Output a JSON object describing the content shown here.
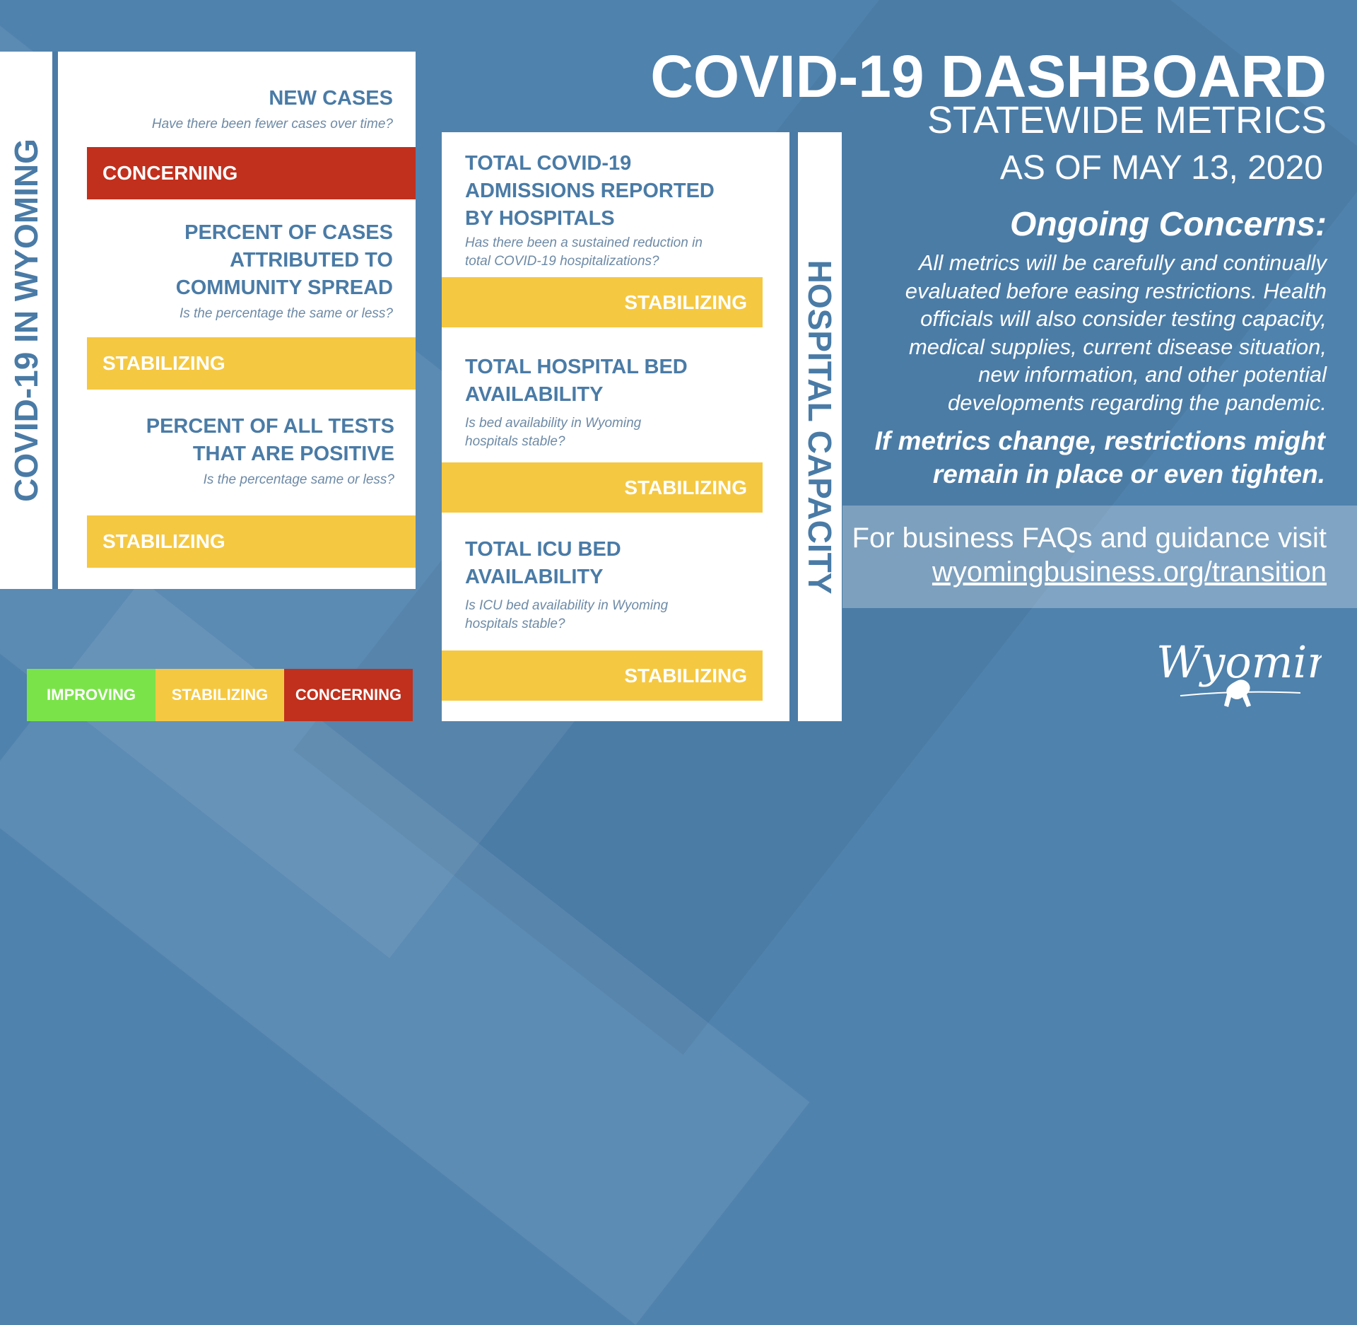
{
  "side_title_left": "COVID-19 IN WYOMING",
  "side_title_right": "HOSPITAL CAPACITY",
  "left_metrics": [
    {
      "title_lines": [
        "NEW CASES"
      ],
      "question": "Have there been fewer cases over time?",
      "status": "CONCERNING"
    },
    {
      "title_lines": [
        "PERCENT OF CASES",
        "ATTRIBUTED TO",
        "COMMUNITY SPREAD"
      ],
      "question": "Is the percentage the same or less?",
      "status": "STABILIZING"
    },
    {
      "title_lines": [
        "PERCENT OF ALL TESTS",
        "THAT ARE POSITIVE"
      ],
      "question": "Is the percentage same or less?",
      "status": "STABILIZING"
    }
  ],
  "hospital_metrics": [
    {
      "title_lines": [
        "TOTAL COVID-19",
        "ADMISSIONS REPORTED",
        "BY HOSPITALS"
      ],
      "question_lines": [
        "Has there been a sustained reduction in",
        "total COVID-19 hospitalizations?"
      ],
      "status": "STABILIZING"
    },
    {
      "title_lines": [
        "TOTAL HOSPITAL BED",
        "AVAILABILITY"
      ],
      "question_lines": [
        "Is bed availability in Wyoming",
        "hospitals stable?"
      ],
      "status": "STABILIZING"
    },
    {
      "title_lines": [
        "TOTAL ICU BED",
        "AVAILABILITY"
      ],
      "question_lines": [
        "Is ICU bed availability in Wyoming",
        "hospitals stable?"
      ],
      "status": "STABILIZING"
    }
  ],
  "legend": {
    "improving": "IMPROVING",
    "stabilizing": "STABILIZING",
    "concerning": "CONCERNING"
  },
  "header": {
    "title": "COVID-19 DASHBOARD",
    "subtitle": "STATEWIDE METRICS",
    "date": "AS OF MAY 13, 2020"
  },
  "concerns": {
    "heading": "Ongoing Concerns:",
    "body_lines": [
      "All metrics will be carefully and continually",
      "evaluated before easing restrictions. Health",
      "officials will also consider testing capacity,",
      "medical supplies, current disease situation,",
      "new information, and other potential",
      "developments regarding the pandemic."
    ],
    "warning_lines": [
      "If metrics change, restrictions might",
      "remain in place or even tighten."
    ]
  },
  "faq": {
    "text": "For business FAQs and guidance visit",
    "link": "wyomingbusiness.org/transition"
  },
  "logo_text": "Wyoming",
  "colors": {
    "blue": "#4a7ba6",
    "concerning": "#c0301d",
    "stabilizing": "#f5c842",
    "improving": "#7be34a"
  }
}
